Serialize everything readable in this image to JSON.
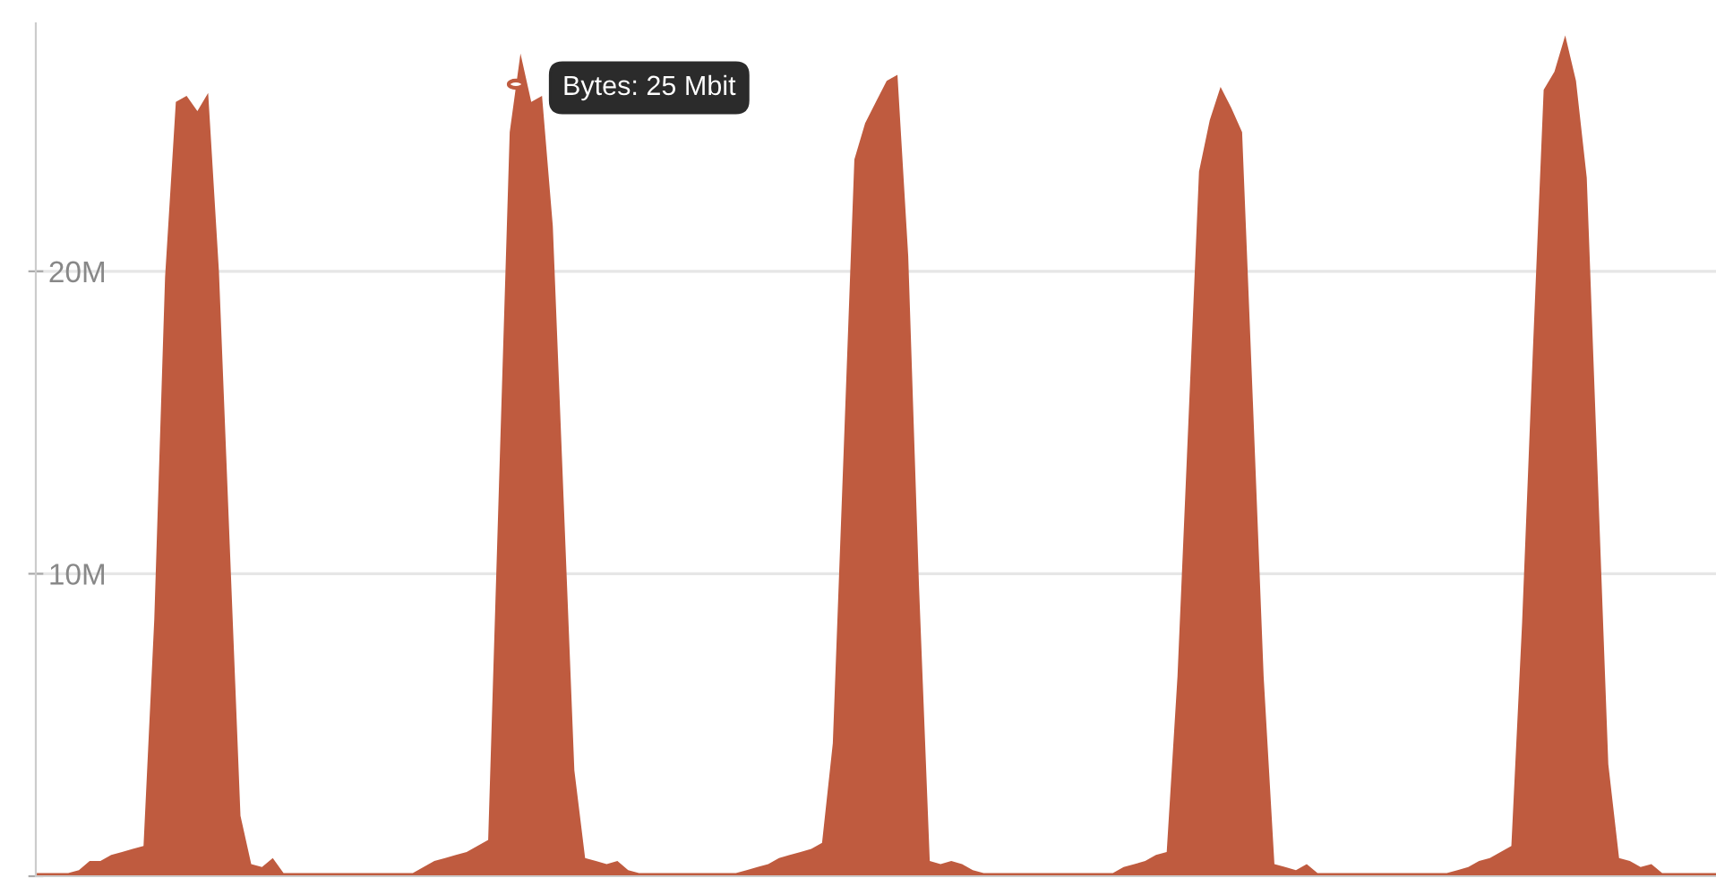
{
  "chart_data": {
    "type": "area",
    "categories": [
      null,
      null,
      null,
      null,
      null,
      null,
      null,
      null,
      null,
      null,
      null,
      null,
      null,
      null,
      null,
      null,
      null,
      null,
      null,
      null,
      null,
      null,
      null,
      null,
      null,
      null,
      null,
      null,
      null,
      null,
      null,
      null,
      null,
      null,
      null,
      null,
      null,
      null,
      null,
      null,
      null,
      null,
      null,
      null,
      null,
      null,
      null,
      null,
      null,
      null,
      null,
      null,
      null,
      null,
      null,
      null,
      null,
      null,
      null,
      null,
      null,
      null,
      null,
      null,
      null,
      null,
      null,
      null,
      null,
      null,
      null,
      null,
      null,
      null,
      null,
      null,
      null,
      null,
      null,
      null,
      null,
      null,
      null,
      null,
      null,
      null,
      null,
      null,
      null,
      null,
      null,
      null,
      null,
      null,
      null,
      null,
      null,
      null,
      null,
      null,
      null,
      null,
      null,
      null,
      null,
      null,
      null,
      null,
      null,
      null,
      null,
      null,
      null,
      null,
      null,
      null,
      null,
      null,
      null,
      null,
      null,
      null,
      null,
      null,
      null,
      null,
      null,
      null,
      null,
      null,
      null,
      null,
      null,
      null,
      null,
      null,
      null,
      null,
      null,
      null,
      null,
      null,
      null,
      null,
      null,
      null,
      null,
      null,
      null,
      null,
      null,
      null,
      null,
      null,
      null,
      null,
      null
    ],
    "series": [
      {
        "color": "#bf5b3f",
        "values": [
          0.1,
          0.1,
          0.1,
          0.1,
          0.2,
          0.5,
          0.5,
          0.7,
          0.8,
          0.9,
          1.0,
          8.5,
          19.8,
          25.6,
          25.8,
          25.3,
          25.9,
          20.0,
          11.0,
          2.0,
          0.4,
          0.3,
          0.6,
          0.1,
          0.1,
          0.1,
          0.1,
          0.1,
          0.1,
          0.1,
          0.1,
          0.1,
          0.1,
          0.1,
          0.1,
          0.1,
          0.3,
          0.5,
          0.6,
          0.7,
          0.8,
          1.0,
          1.2,
          12.9,
          24.6,
          27.2,
          25.6,
          25.8,
          21.5,
          12.5,
          3.5,
          0.6,
          0.5,
          0.4,
          0.5,
          0.2,
          0.1,
          0.1,
          0.1,
          0.1,
          0.1,
          0.1,
          0.1,
          0.1,
          0.1,
          0.1,
          0.2,
          0.3,
          0.4,
          0.6,
          0.7,
          0.8,
          0.9,
          1.1,
          4.4,
          14.0,
          23.7,
          24.9,
          25.6,
          26.3,
          26.5,
          20.5,
          9.6,
          0.5,
          0.4,
          0.5,
          0.4,
          0.2,
          0.1,
          0.1,
          0.1,
          0.1,
          0.1,
          0.1,
          0.1,
          0.1,
          0.1,
          0.1,
          0.1,
          0.1,
          0.1,
          0.3,
          0.4,
          0.5,
          0.7,
          0.8,
          6.6,
          14.9,
          23.3,
          25.0,
          26.1,
          25.4,
          24.6,
          15.7,
          6.6,
          0.4,
          0.3,
          0.2,
          0.4,
          0.1,
          0.1,
          0.1,
          0.1,
          0.1,
          0.1,
          0.1,
          0.1,
          0.1,
          0.1,
          0.1,
          0.1,
          0.1,
          0.2,
          0.3,
          0.5,
          0.6,
          0.8,
          1.0,
          8.4,
          17.4,
          26.0,
          26.6,
          27.8,
          26.3,
          23.1,
          13.4,
          3.7,
          0.6,
          0.5,
          0.3,
          0.4,
          0.1,
          0.1,
          0.1,
          0.1,
          0.1,
          0.1
        ]
      }
    ],
    "ylim": [
      0,
      28.2
    ],
    "yticks": [
      {
        "value": 0,
        "label": null
      },
      {
        "value": 10,
        "label": "10M"
      },
      {
        "value": 20,
        "label": "20M"
      }
    ],
    "grid": "y",
    "annotations": [
      "Bytes: 25 Mbit"
    ]
  }
}
